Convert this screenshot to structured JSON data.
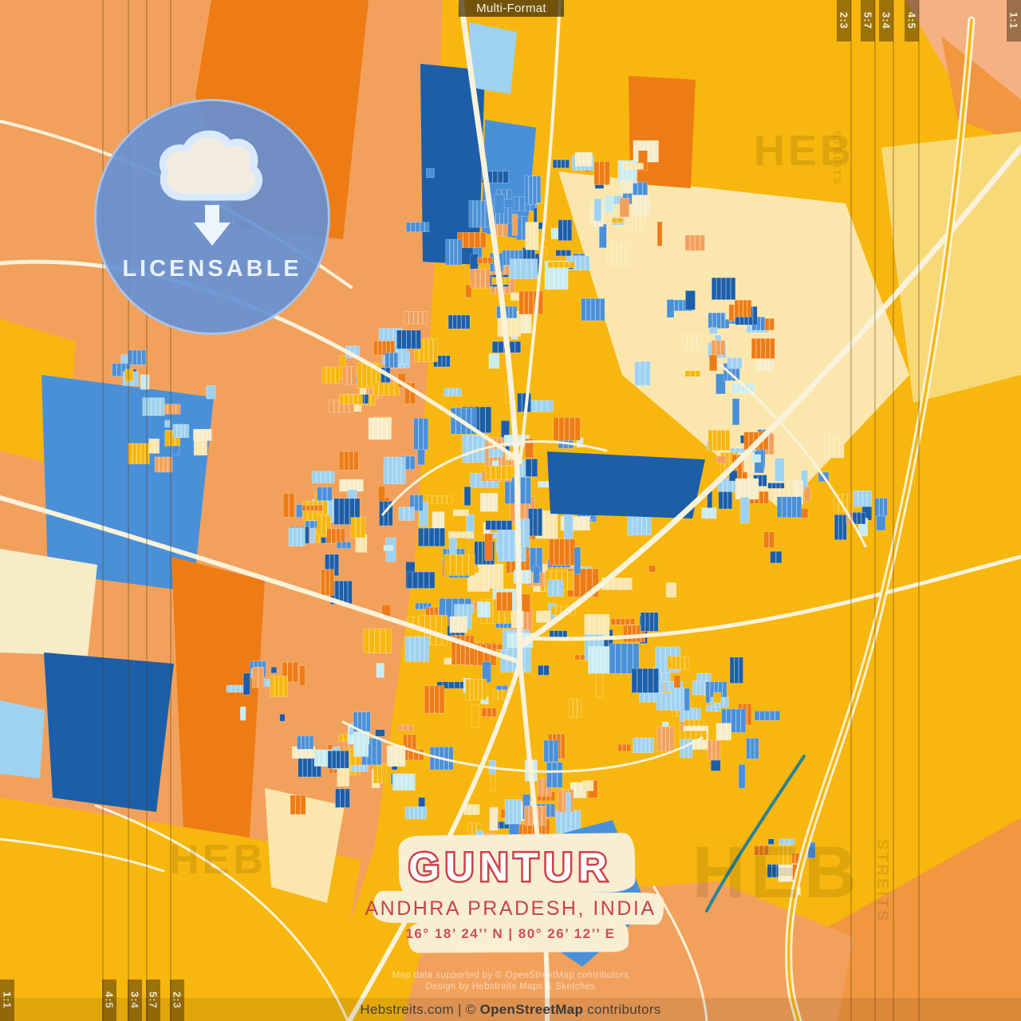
{
  "header": {
    "format_label": "Multi-Format"
  },
  "ratio_guides": {
    "top": [
      "2:3",
      "5:7",
      "3:4",
      "4:5",
      "1:1"
    ],
    "bottom": [
      "1:1",
      "4:5",
      "3:4",
      "5:7",
      "2:3"
    ]
  },
  "badge": {
    "label": "LICENSABLE",
    "icon": "cloud-download-icon"
  },
  "title_block": {
    "title": "GUNTUR",
    "subtitle": "ANDHRA PRADESH, INDIA",
    "coordinates": "16°  18’  24’’ N  |  80°  26’  12’’ E"
  },
  "attribution": {
    "line1": "Map data supported by © OpenStreetMap contributors",
    "line2": "Design by Hebstreits Maps & Sketches"
  },
  "footer": {
    "site": "Hebstreits.com",
    "sep": " | © ",
    "osm_name": "OpenStreetMap",
    "contributors": " contributors"
  },
  "watermark": {
    "text": "HEB",
    "vertical_text": "STREITS"
  },
  "palette": {
    "light_orange": "#f2a15c",
    "peach": "#f5b183",
    "deep_orange": "#ee7c14",
    "orange": "#f0973f",
    "gold": "#f7b70e",
    "pale_yellow": "#f8d978",
    "lighter_yellow": "#fbe7ad",
    "cream": "#f6ecc8",
    "road": "#faf2da",
    "navy": "#1c5ea8",
    "blue": "#4a90d8",
    "sky": "#9fd2f0",
    "pale_cyan": "#c9ecf0",
    "teal": "#2a8296",
    "accent_red": "#cd4049",
    "badge_blue": "#6390d6",
    "badge_light": "#e9f1fc"
  }
}
